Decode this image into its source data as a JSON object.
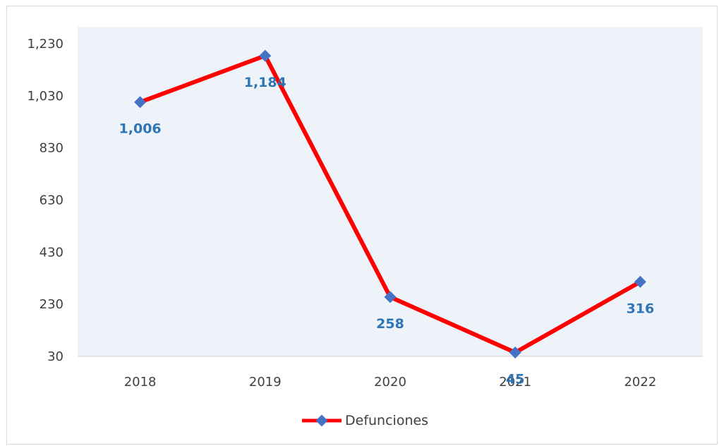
{
  "chart_data": {
    "type": "line",
    "title": "",
    "xlabel": "",
    "ylabel": "",
    "categories": [
      "2018",
      "2019",
      "2020",
      "2021",
      "2022"
    ],
    "series": [
      {
        "name": "Defunciones",
        "values": [
          1006,
          1184,
          258,
          45,
          316
        ],
        "labels": [
          "1,006",
          "1,184",
          "258",
          "45",
          "316"
        ]
      }
    ],
    "yticks": [
      "1,230",
      "1,030",
      "830",
      "630",
      "430",
      "230",
      "30"
    ],
    "ylim": [
      30,
      1230
    ],
    "grid": false,
    "legend_position": "bottom",
    "colors": {
      "line": "#ff0000",
      "marker": "#4472c4",
      "data_label": "#2e75b6",
      "plot_background": "#eef3fa",
      "tick_text": "#404040"
    }
  }
}
